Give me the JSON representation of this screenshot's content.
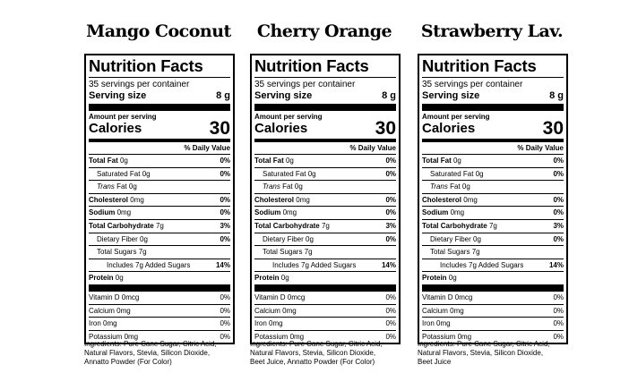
{
  "panels": [
    {
      "flavor": "Mango Coconut",
      "title": "Nutrition Facts",
      "servings": "35 servings per container",
      "serving_size_label": "Serving size",
      "serving_size_value": "8 g",
      "amount_per_serving": "Amount per serving",
      "calories_label": "Calories",
      "calories_value": "30",
      "dv_header": "% Daily Value",
      "total_fat": "Total Fat",
      "total_fat_amt": " 0g",
      "total_fat_dv": "0%",
      "sat_fat": "Saturated Fat 0g",
      "sat_fat_dv": "0%",
      "trans_fat_italic": "Trans",
      "trans_fat_rest": " Fat 0g",
      "cholesterol": "Cholesterol",
      "cholesterol_amt": " 0mg",
      "cholesterol_dv": "0%",
      "sodium": "Sodium",
      "sodium_amt": " 0mg",
      "sodium_dv": "0%",
      "carb": "Total Carbohydrate",
      "carb_amt": " 7g",
      "carb_dv": "3%",
      "fiber": "Dietary Fiber 0g",
      "fiber_dv": "0%",
      "sugars": "Total Sugars 7g",
      "added_sugars": "Includes 7g Added Sugars",
      "added_sugars_dv": "14%",
      "protein": "Protein",
      "protein_amt": " 0g",
      "vit_d": "Vitamin D 0mcg",
      "vit_d_dv": "0%",
      "calcium": "Calcium 0mg",
      "calcium_dv": "0%",
      "iron": "Iron 0mg",
      "iron_dv": "0%",
      "potassium": "Potassium 0mg",
      "potassium_dv": "0%",
      "ingredients_1": "Ingredients: Pure Cane Sugar, Citric Acid,",
      "ingredients_2": "Natural Flavors, Stevia, Silicon Dioxide,",
      "ingredients_3": "Annatto Powder (For Color)"
    },
    {
      "flavor": "Cherry Orange",
      "title": "Nutrition Facts",
      "servings": "35 servings per container",
      "serving_size_label": "Serving size",
      "serving_size_value": "8 g",
      "amount_per_serving": "Amount per serving",
      "calories_label": "Calories",
      "calories_value": "30",
      "dv_header": "% Daily Value",
      "total_fat": "Total Fat",
      "total_fat_amt": " 0g",
      "total_fat_dv": "0%",
      "sat_fat": "Saturated Fat 0g",
      "sat_fat_dv": "0%",
      "trans_fat_italic": "Trans",
      "trans_fat_rest": " Fat 0g",
      "cholesterol": "Cholesterol",
      "cholesterol_amt": " 0mg",
      "cholesterol_dv": "0%",
      "sodium": "Sodium",
      "sodium_amt": " 0mg",
      "sodium_dv": "0%",
      "carb": "Total Carbohydrate",
      "carb_amt": " 7g",
      "carb_dv": "3%",
      "fiber": "Dietary Fiber 0g",
      "fiber_dv": "0%",
      "sugars": "Total Sugars 7g",
      "added_sugars": "Includes 7g Added Sugars",
      "added_sugars_dv": "14%",
      "protein": "Protein",
      "protein_amt": " 0g",
      "vit_d": "Vitamin D 0mcg",
      "vit_d_dv": "0%",
      "calcium": "Calcium 0mg",
      "calcium_dv": "0%",
      "iron": "Iron 0mg",
      "iron_dv": "0%",
      "potassium": "Potassium 0mg",
      "potassium_dv": "0%",
      "ingredients_1": "Ingredients: Pure Cane Sugar, Citric Acid,",
      "ingredients_2": "Natural Flavors, Stevia, Silicon Dioxide,",
      "ingredients_3": "Beet Juice, Annatto Powder (For Color)"
    },
    {
      "flavor": "Strawberry Lav.",
      "title": "Nutrition Facts",
      "servings": "35 servings per container",
      "serving_size_label": "Serving size",
      "serving_size_value": "8 g",
      "amount_per_serving": "Amount per serving",
      "calories_label": "Calories",
      "calories_value": "30",
      "dv_header": "% Daily Value",
      "total_fat": "Total Fat",
      "total_fat_amt": " 0g",
      "total_fat_dv": "0%",
      "sat_fat": "Saturated Fat 0g",
      "sat_fat_dv": "0%",
      "trans_fat_italic": "Trans",
      "trans_fat_rest": " Fat 0g",
      "cholesterol": "Cholesterol",
      "cholesterol_amt": " 0mg",
      "cholesterol_dv": "0%",
      "sodium": "Sodium",
      "sodium_amt": " 0mg",
      "sodium_dv": "0%",
      "carb": "Total Carbohydrate",
      "carb_amt": " 7g",
      "carb_dv": "3%",
      "fiber": "Dietary Fiber 0g",
      "fiber_dv": "0%",
      "sugars": "Total Sugars 7g",
      "added_sugars": "Includes 7g Added Sugars",
      "added_sugars_dv": "14%",
      "protein": "Protein",
      "protein_amt": " 0g",
      "vit_d": "Vitamin D 0mcg",
      "vit_d_dv": "0%",
      "calcium": "Calcium 0mg",
      "calcium_dv": "0%",
      "iron": "Iron 0mg",
      "iron_dv": "0%",
      "potassium": "Potassium 0mg",
      "potassium_dv": "0%",
      "ingredients_1": "Ingredients: Pure Cane Sugar, Citric Acid,",
      "ingredients_2": "Natural Flavors, Stevia, Silicon Dioxide,",
      "ingredients_3": "Beet Juice"
    }
  ]
}
